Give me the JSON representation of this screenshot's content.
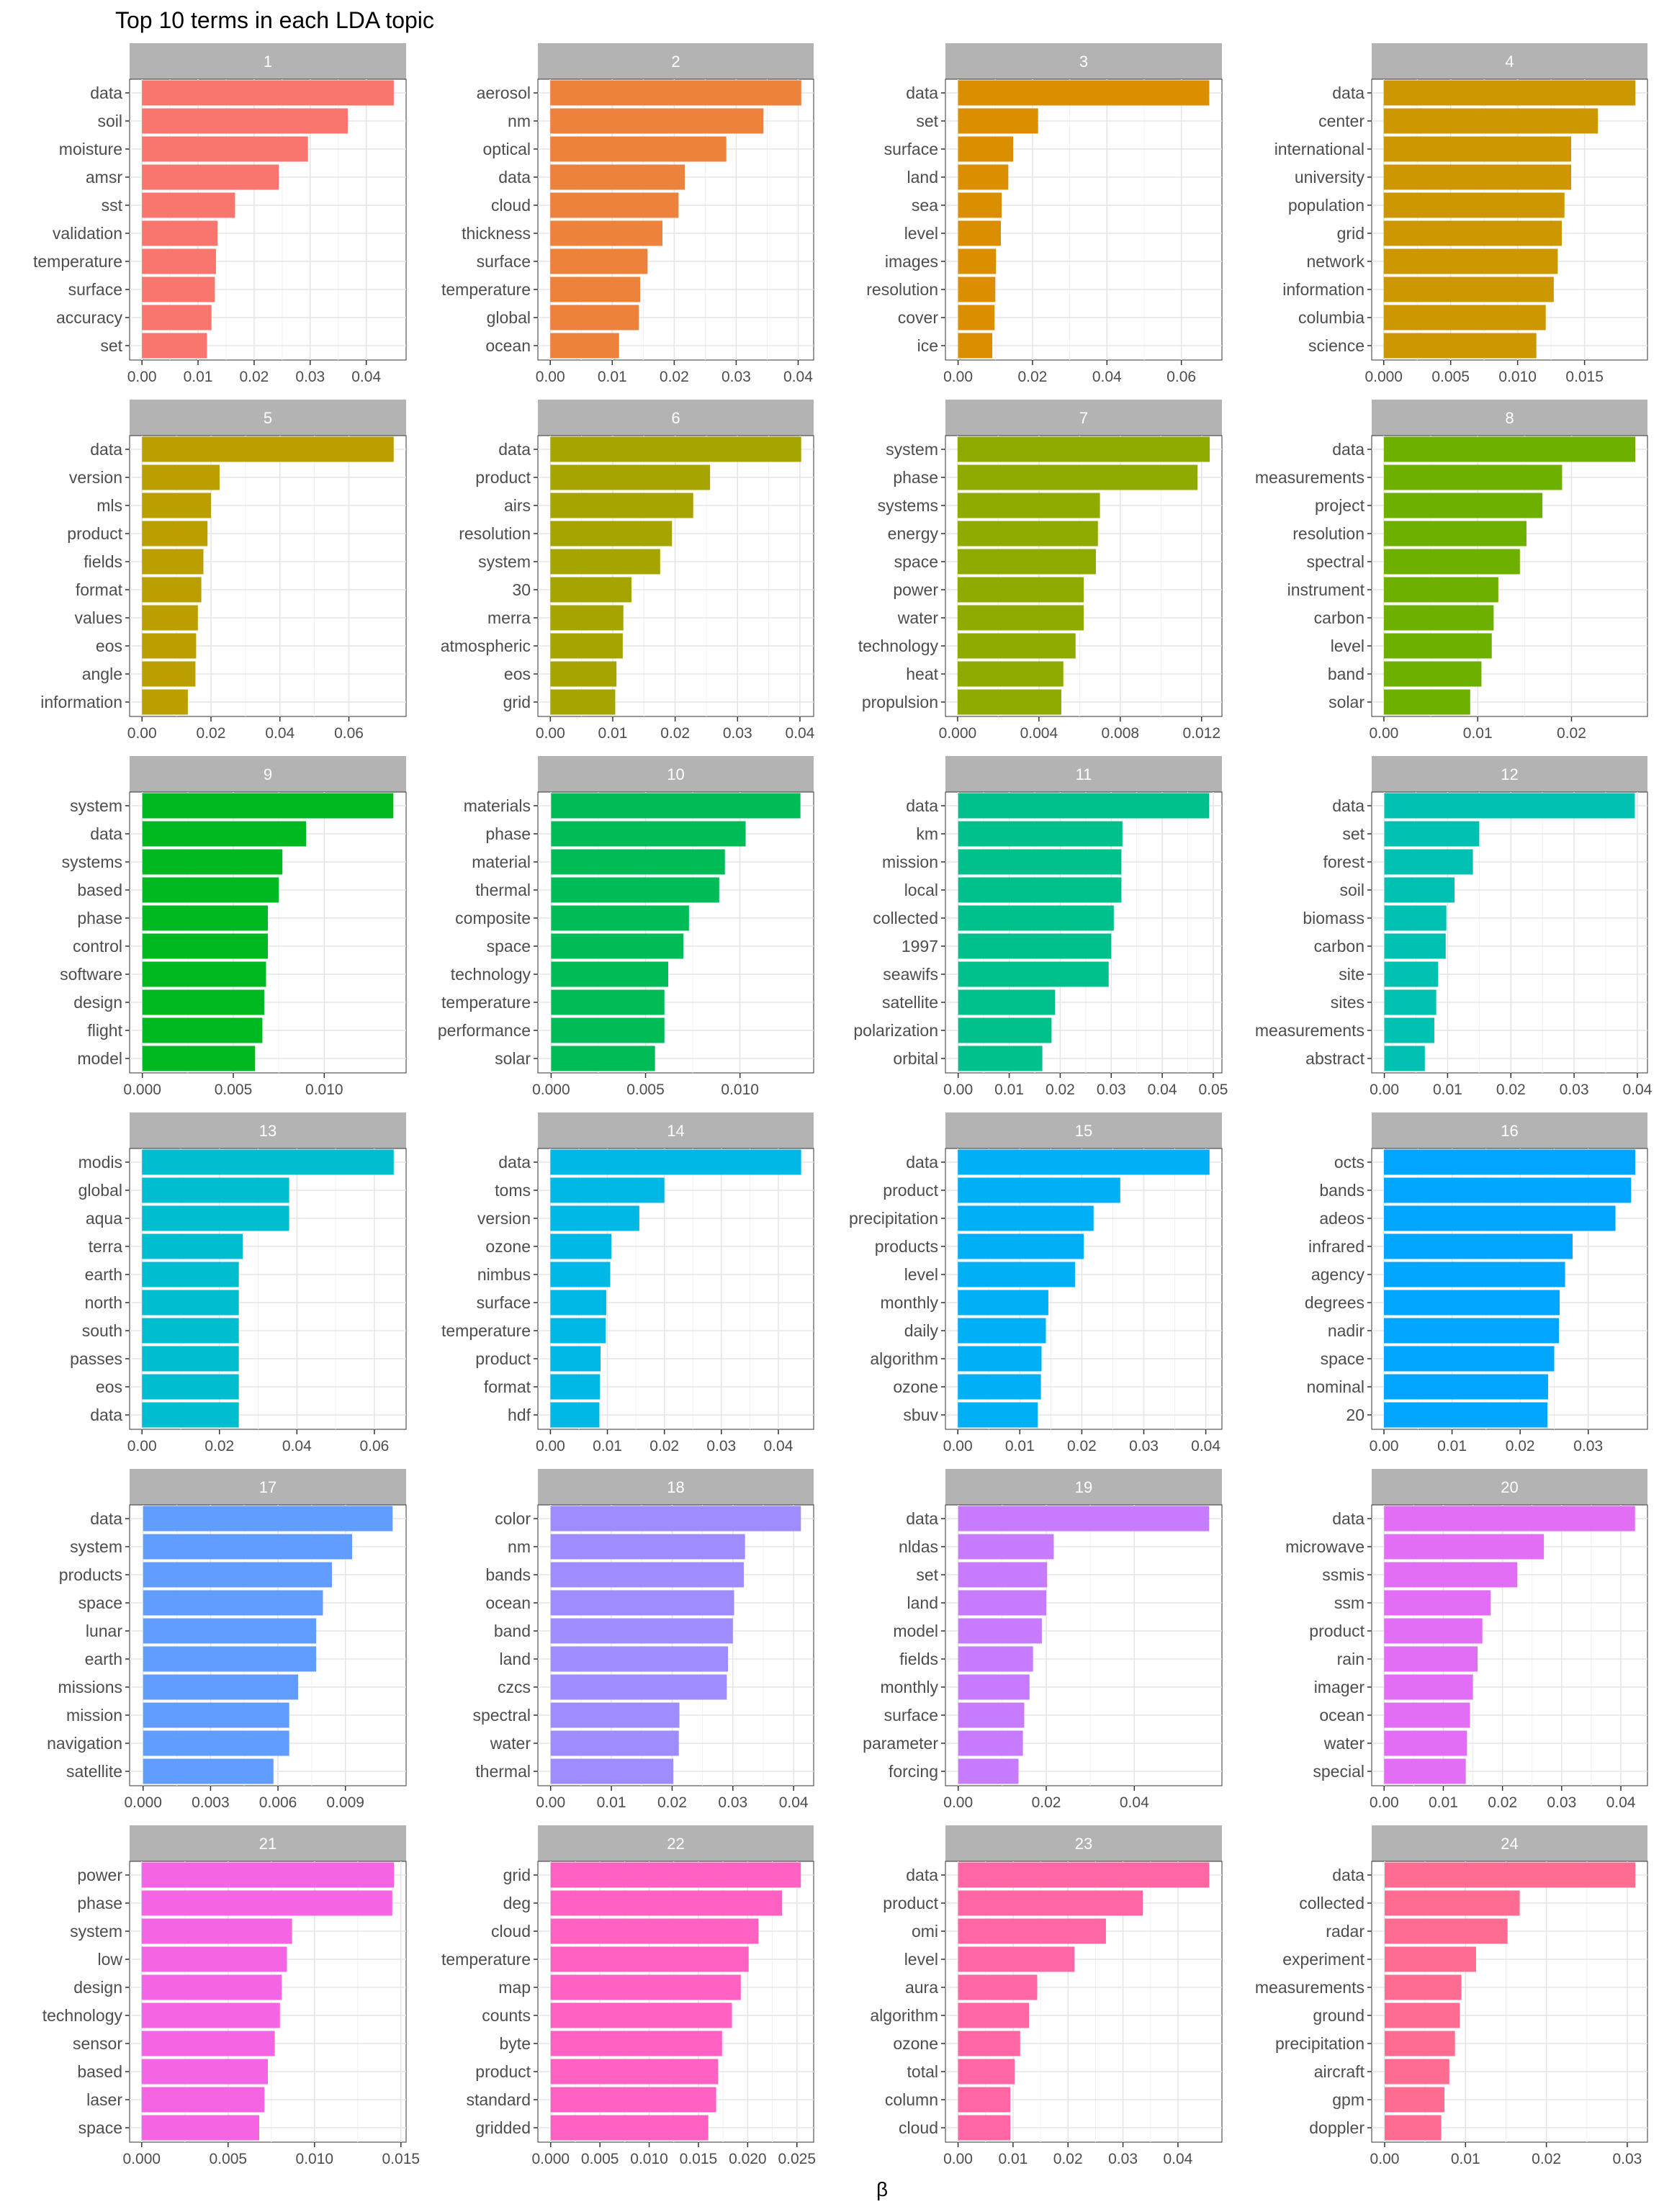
{
  "chart_data": {
    "type": "bar",
    "orientation": "horizontal",
    "layout": "facets",
    "title": "Top 10 terms in each LDA topic",
    "xlabel": "β",
    "ylabel": "",
    "grid": true,
    "legend": "none",
    "panels": [
      {
        "topic": "1",
        "color": "#F8766D",
        "terms": [
          "data",
          "soil",
          "moisture",
          "amsr",
          "sst",
          "validation",
          "temperature",
          "surface",
          "accuracy",
          "set"
        ],
        "values": [
          0.0449,
          0.0367,
          0.0296,
          0.0244,
          0.0166,
          0.0135,
          0.0132,
          0.013,
          0.0124,
          0.0116
        ],
        "ticks": [
          0,
          0.01,
          0.02,
          0.03,
          0.04
        ],
        "tick_labels": [
          "0.00",
          "0.01",
          "0.02",
          "0.03",
          "0.04"
        ],
        "xlim": [
          -0.0022,
          0.0471
        ]
      },
      {
        "topic": "2",
        "color": "#EC823C",
        "terms": [
          "aerosol",
          "nm",
          "optical",
          "data",
          "cloud",
          "thickness",
          "surface",
          "temperature",
          "global",
          "ocean"
        ],
        "values": [
          0.0405,
          0.0344,
          0.0284,
          0.0217,
          0.0207,
          0.0181,
          0.0157,
          0.0145,
          0.0143,
          0.0111
        ],
        "ticks": [
          0,
          0.01,
          0.02,
          0.03,
          0.04
        ],
        "tick_labels": [
          "0.00",
          "0.01",
          "0.02",
          "0.03",
          "0.04"
        ],
        "xlim": [
          -0.002,
          0.0425
        ]
      },
      {
        "topic": "3",
        "color": "#DB8E00",
        "terms": [
          "data",
          "set",
          "surface",
          "land",
          "sea",
          "level",
          "images",
          "resolution",
          "cover",
          "ice"
        ],
        "values": [
          0.0675,
          0.0215,
          0.0148,
          0.0135,
          0.0117,
          0.0115,
          0.0102,
          0.01,
          0.0098,
          0.0092
        ],
        "ticks": [
          0,
          0.02,
          0.04,
          0.06
        ],
        "tick_labels": [
          "0.00",
          "0.02",
          "0.04",
          "0.06"
        ],
        "xlim": [
          -0.0034,
          0.0709
        ]
      },
      {
        "topic": "4",
        "color": "#CC9700",
        "terms": [
          "data",
          "center",
          "international",
          "university",
          "population",
          "grid",
          "network",
          "information",
          "columbia",
          "science"
        ],
        "values": [
          0.0188,
          0.016,
          0.014,
          0.014,
          0.0135,
          0.0133,
          0.013,
          0.0127,
          0.0121,
          0.0114
        ],
        "ticks": [
          0,
          0.005,
          0.01,
          0.015
        ],
        "tick_labels": [
          "0.000",
          "0.005",
          "0.010",
          "0.015"
        ],
        "xlim": [
          -0.0009,
          0.0197
        ]
      },
      {
        "topic": "5",
        "color": "#BB9F00",
        "terms": [
          "data",
          "version",
          "mls",
          "product",
          "fields",
          "format",
          "values",
          "eos",
          "angle",
          "information"
        ],
        "values": [
          0.073,
          0.0225,
          0.02,
          0.019,
          0.0178,
          0.0172,
          0.0162,
          0.0157,
          0.0155,
          0.0133
        ],
        "ticks": [
          0,
          0.02,
          0.04,
          0.06
        ],
        "tick_labels": [
          "0.00",
          "0.02",
          "0.04",
          "0.06"
        ],
        "xlim": [
          -0.0036,
          0.0766
        ]
      },
      {
        "topic": "6",
        "color": "#A6A400",
        "terms": [
          "data",
          "product",
          "airs",
          "resolution",
          "system",
          "30",
          "merra",
          "atmospheric",
          "eos",
          "grid"
        ],
        "values": [
          0.0402,
          0.0256,
          0.0229,
          0.0195,
          0.0176,
          0.013,
          0.0117,
          0.0116,
          0.0106,
          0.0104
        ],
        "ticks": [
          0,
          0.01,
          0.02,
          0.03,
          0.04
        ],
        "tick_labels": [
          "0.00",
          "0.01",
          "0.02",
          "0.03",
          "0.04"
        ],
        "xlim": [
          -0.002,
          0.0422
        ]
      },
      {
        "topic": "7",
        "color": "#8FAA00",
        "terms": [
          "system",
          "phase",
          "systems",
          "energy",
          "space",
          "power",
          "water",
          "technology",
          "heat",
          "propulsion"
        ],
        "values": [
          0.0124,
          0.0118,
          0.007,
          0.0069,
          0.0068,
          0.0062,
          0.0062,
          0.0058,
          0.0052,
          0.0051
        ],
        "ticks": [
          0,
          0.004,
          0.008,
          0.012
        ],
        "tick_labels": [
          "0.000",
          "0.004",
          "0.008",
          "0.012"
        ],
        "xlim": [
          -0.0006,
          0.013
        ]
      },
      {
        "topic": "8",
        "color": "#6DB000",
        "terms": [
          "data",
          "measurements",
          "project",
          "resolution",
          "spectral",
          "instrument",
          "carbon",
          "level",
          "band",
          "solar"
        ],
        "values": [
          0.0268,
          0.019,
          0.0169,
          0.0152,
          0.0145,
          0.0122,
          0.0117,
          0.0115,
          0.0104,
          0.0092
        ],
        "ticks": [
          0,
          0.01,
          0.02
        ],
        "tick_labels": [
          "0.00",
          "0.01",
          "0.02"
        ],
        "xlim": [
          -0.0013,
          0.0281
        ]
      },
      {
        "topic": "9",
        "color": "#00B81F",
        "terms": [
          "system",
          "data",
          "systems",
          "based",
          "phase",
          "control",
          "software",
          "design",
          "flight",
          "model"
        ],
        "values": [
          0.0138,
          0.009,
          0.0077,
          0.0075,
          0.0069,
          0.0069,
          0.0068,
          0.0067,
          0.0066,
          0.0062
        ],
        "ticks": [
          0,
          0.005,
          0.01
        ],
        "tick_labels": [
          "0.000",
          "0.005",
          "0.010"
        ],
        "xlim": [
          -0.0007,
          0.0145
        ]
      },
      {
        "topic": "10",
        "color": "#00BC57",
        "terms": [
          "materials",
          "phase",
          "material",
          "thermal",
          "composite",
          "space",
          "technology",
          "temperature",
          "performance",
          "solar"
        ],
        "values": [
          0.0132,
          0.0103,
          0.0092,
          0.0089,
          0.0073,
          0.007,
          0.0062,
          0.006,
          0.006,
          0.0055
        ],
        "ticks": [
          0,
          0.005,
          0.01
        ],
        "tick_labels": [
          "0.000",
          "0.005",
          "0.010"
        ],
        "xlim": [
          -0.0007,
          0.0139
        ]
      },
      {
        "topic": "11",
        "color": "#00C08B",
        "terms": [
          "data",
          "km",
          "mission",
          "local",
          "collected",
          "1997",
          "seawifs",
          "satellite",
          "polarization",
          "orbital"
        ],
        "values": [
          0.0492,
          0.0322,
          0.032,
          0.032,
          0.0305,
          0.03,
          0.0295,
          0.019,
          0.0183,
          0.0165
        ],
        "ticks": [
          0,
          0.01,
          0.02,
          0.03,
          0.04,
          0.05
        ],
        "tick_labels": [
          "0.00",
          "0.01",
          "0.02",
          "0.03",
          "0.04",
          "0.05"
        ],
        "xlim": [
          -0.0025,
          0.0517
        ]
      },
      {
        "topic": "12",
        "color": "#00C0B2",
        "terms": [
          "data",
          "set",
          "forest",
          "soil",
          "biomass",
          "carbon",
          "site",
          "sites",
          "measurements",
          "abstract"
        ],
        "values": [
          0.0396,
          0.015,
          0.014,
          0.0111,
          0.0098,
          0.0097,
          0.0085,
          0.0082,
          0.0079,
          0.0064
        ],
        "ticks": [
          0,
          0.01,
          0.02,
          0.03,
          0.04
        ],
        "tick_labels": [
          "0.00",
          "0.01",
          "0.02",
          "0.03",
          "0.04"
        ],
        "xlim": [
          -0.002,
          0.0416
        ]
      },
      {
        "topic": "13",
        "color": "#00BDD0",
        "terms": [
          "modis",
          "global",
          "aqua",
          "terra",
          "earth",
          "north",
          "south",
          "passes",
          "eos",
          "data"
        ],
        "values": [
          0.065,
          0.038,
          0.038,
          0.026,
          0.025,
          0.025,
          0.025,
          0.025,
          0.025,
          0.025
        ],
        "ticks": [
          0,
          0.02,
          0.04,
          0.06
        ],
        "tick_labels": [
          "0.00",
          "0.02",
          "0.04",
          "0.06"
        ],
        "xlim": [
          -0.0032,
          0.0682
        ]
      },
      {
        "topic": "14",
        "color": "#00B8E5",
        "terms": [
          "data",
          "toms",
          "version",
          "ozone",
          "nimbus",
          "surface",
          "temperature",
          "product",
          "format",
          "hdf"
        ],
        "values": [
          0.044,
          0.02,
          0.0156,
          0.0107,
          0.0105,
          0.0098,
          0.0097,
          0.0088,
          0.0087,
          0.0086
        ],
        "ticks": [
          0,
          0.01,
          0.02,
          0.03,
          0.04
        ],
        "tick_labels": [
          "0.00",
          "0.01",
          "0.02",
          "0.03",
          "0.04"
        ],
        "xlim": [
          -0.0022,
          0.0462
        ]
      },
      {
        "topic": "15",
        "color": "#00B0F6",
        "terms": [
          "data",
          "product",
          "precipitation",
          "products",
          "level",
          "monthly",
          "daily",
          "algorithm",
          "ozone",
          "sbuv"
        ],
        "values": [
          0.0406,
          0.0262,
          0.0219,
          0.0203,
          0.0189,
          0.0146,
          0.0142,
          0.0135,
          0.0134,
          0.0129
        ],
        "ticks": [
          0,
          0.01,
          0.02,
          0.03,
          0.04
        ],
        "tick_labels": [
          "0.00",
          "0.01",
          "0.02",
          "0.03",
          "0.04"
        ],
        "xlim": [
          -0.002,
          0.0426
        ]
      },
      {
        "topic": "16",
        "color": "#00A6FF",
        "terms": [
          "octs",
          "bands",
          "adeos",
          "infrared",
          "agency",
          "degrees",
          "nadir",
          "space",
          "nominal",
          "20"
        ],
        "values": [
          0.0369,
          0.0363,
          0.034,
          0.0277,
          0.0266,
          0.0258,
          0.0257,
          0.025,
          0.0241,
          0.024
        ],
        "ticks": [
          0,
          0.01,
          0.02,
          0.03
        ],
        "tick_labels": [
          "0.00",
          "0.01",
          "0.02",
          "0.03"
        ],
        "xlim": [
          -0.0018,
          0.0387
        ]
      },
      {
        "topic": "17",
        "color": "#619CFF",
        "terms": [
          "data",
          "system",
          "products",
          "space",
          "lunar",
          "earth",
          "missions",
          "mission",
          "navigation",
          "satellite"
        ],
        "values": [
          0.0111,
          0.0093,
          0.0084,
          0.008,
          0.0077,
          0.0077,
          0.0069,
          0.0065,
          0.0065,
          0.0058
        ],
        "ticks": [
          0,
          0.003,
          0.006,
          0.009
        ],
        "tick_labels": [
          "0.000",
          "0.003",
          "0.006",
          "0.009"
        ],
        "xlim": [
          -0.0006,
          0.0117
        ]
      },
      {
        "topic": "18",
        "color": "#9F8CFF",
        "terms": [
          "color",
          "nm",
          "bands",
          "ocean",
          "band",
          "land",
          "czcs",
          "spectral",
          "water",
          "thermal"
        ],
        "values": [
          0.0412,
          0.032,
          0.0318,
          0.0302,
          0.03,
          0.0292,
          0.029,
          0.0212,
          0.0211,
          0.0202
        ],
        "ticks": [
          0,
          0.01,
          0.02,
          0.03,
          0.04
        ],
        "tick_labels": [
          "0.00",
          "0.01",
          "0.02",
          "0.03",
          "0.04"
        ],
        "xlim": [
          -0.0021,
          0.0433
        ]
      },
      {
        "topic": "19",
        "color": "#C77CFF",
        "terms": [
          "data",
          "nldas",
          "set",
          "land",
          "model",
          "fields",
          "monthly",
          "surface",
          "parameter",
          "forcing"
        ],
        "values": [
          0.057,
          0.0217,
          0.0202,
          0.02,
          0.019,
          0.017,
          0.0162,
          0.015,
          0.0147,
          0.0137
        ],
        "ticks": [
          0,
          0.02,
          0.04
        ],
        "tick_labels": [
          "0.00",
          "0.02",
          "0.04"
        ],
        "xlim": [
          -0.0029,
          0.0599
        ]
      },
      {
        "topic": "20",
        "color": "#E36EF6",
        "terms": [
          "data",
          "microwave",
          "ssmis",
          "ssm",
          "product",
          "rain",
          "imager",
          "ocean",
          "water",
          "special"
        ],
        "values": [
          0.0424,
          0.027,
          0.0225,
          0.018,
          0.0166,
          0.0158,
          0.015,
          0.0145,
          0.014,
          0.0138
        ],
        "ticks": [
          0,
          0.01,
          0.02,
          0.03,
          0.04
        ],
        "tick_labels": [
          "0.00",
          "0.01",
          "0.02",
          "0.03",
          "0.04"
        ],
        "xlim": [
          -0.0021,
          0.0445
        ]
      },
      {
        "topic": "21",
        "color": "#F564E3",
        "terms": [
          "power",
          "phase",
          "system",
          "low",
          "design",
          "technology",
          "sensor",
          "based",
          "laser",
          "space"
        ],
        "values": [
          0.0146,
          0.0145,
          0.0087,
          0.0084,
          0.0081,
          0.008,
          0.0077,
          0.0073,
          0.0071,
          0.0068
        ],
        "ticks": [
          0,
          0.005,
          0.01,
          0.015
        ],
        "tick_labels": [
          "0.000",
          "0.005",
          "0.010",
          "0.015"
        ],
        "xlim": [
          -0.0007,
          0.0153
        ]
      },
      {
        "topic": "22",
        "color": "#FF61C3",
        "terms": [
          "grid",
          "deg",
          "cloud",
          "temperature",
          "map",
          "counts",
          "byte",
          "product",
          "standard",
          "gridded"
        ],
        "values": [
          0.0254,
          0.0235,
          0.0211,
          0.0201,
          0.0193,
          0.0184,
          0.0174,
          0.017,
          0.0168,
          0.016
        ],
        "ticks": [
          0,
          0.005,
          0.01,
          0.015,
          0.02,
          0.025
        ],
        "tick_labels": [
          "0.000",
          "0.005",
          "0.010",
          "0.015",
          "0.020",
          "0.025"
        ],
        "xlim": [
          -0.0013,
          0.0267
        ]
      },
      {
        "topic": "23",
        "color": "#FF67A4",
        "terms": [
          "data",
          "product",
          "omi",
          "level",
          "aura",
          "algorithm",
          "ozone",
          "total",
          "column",
          "cloud"
        ],
        "values": [
          0.0457,
          0.0336,
          0.0269,
          0.0212,
          0.0144,
          0.0129,
          0.0113,
          0.0103,
          0.0095,
          0.0095
        ],
        "ticks": [
          0,
          0.01,
          0.02,
          0.03,
          0.04
        ],
        "tick_labels": [
          "0.00",
          "0.01",
          "0.02",
          "0.03",
          "0.04"
        ],
        "xlim": [
          -0.0023,
          0.048
        ]
      },
      {
        "topic": "24",
        "color": "#FF6C91",
        "terms": [
          "data",
          "collected",
          "radar",
          "experiment",
          "measurements",
          "ground",
          "precipitation",
          "aircraft",
          "gpm",
          "doppler"
        ],
        "values": [
          0.031,
          0.0167,
          0.0152,
          0.0113,
          0.0095,
          0.0093,
          0.0087,
          0.008,
          0.0074,
          0.007
        ],
        "ticks": [
          0,
          0.01,
          0.02,
          0.03
        ],
        "tick_labels": [
          "0.00",
          "0.01",
          "0.02",
          "0.03"
        ],
        "xlim": [
          -0.0016,
          0.0325
        ]
      }
    ]
  }
}
